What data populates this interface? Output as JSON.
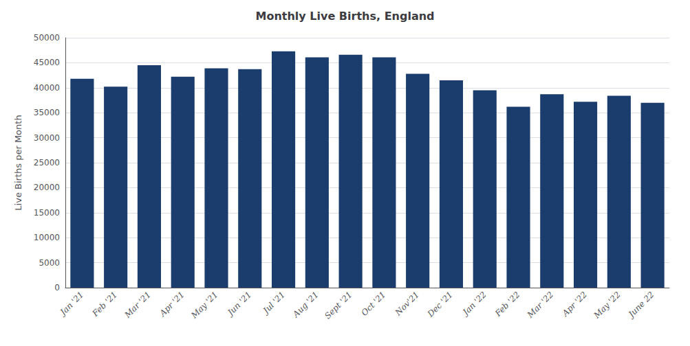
{
  "chart_data": {
    "type": "bar",
    "title": "Monthly Live Births, England",
    "ylabel": "Live Births per Month",
    "categories": [
      "Jan '21",
      "Feb '21",
      "Mar '21",
      "Apr '21",
      "May '21",
      "Jun '21",
      "Jul '21",
      "Aug '21",
      "Sept '21",
      "Oct '21",
      "Nov'21",
      "Dec '21",
      "Jan '22",
      "Feb '22",
      "Mar '22",
      "Apr '22",
      "May '22",
      "June 22"
    ],
    "values": [
      41800,
      40200,
      44500,
      42200,
      43900,
      43700,
      47300,
      46100,
      46600,
      46100,
      42800,
      41500,
      39500,
      36200,
      38700,
      37200,
      38400,
      37000
    ],
    "color": "#1a3d6e",
    "ylim": [
      0,
      50000
    ],
    "yticks": [
      0,
      5000,
      10000,
      15000,
      20000,
      25000,
      30000,
      35000,
      40000,
      45000,
      50000
    ],
    "grid": true
  }
}
